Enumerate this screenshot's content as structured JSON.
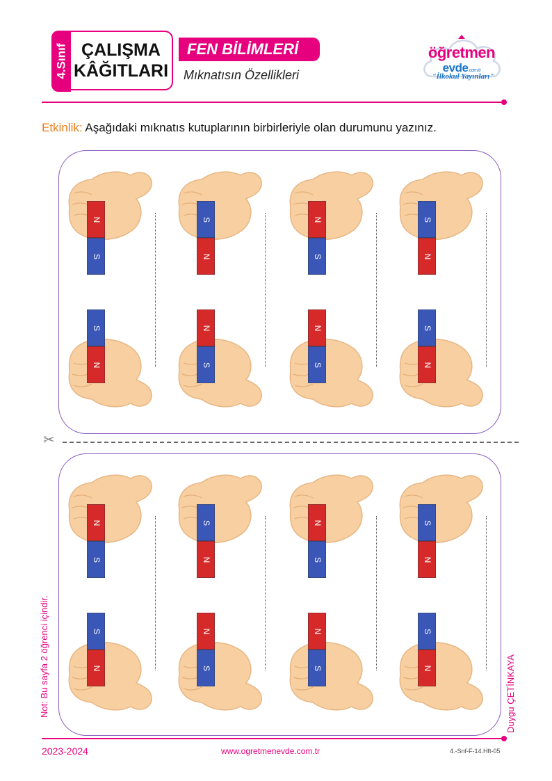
{
  "header": {
    "grade": "4.Sınıf",
    "title_line1": "ÇALIŞMA",
    "title_line2": "KÂĞITLARI",
    "subject": "FEN BİLİMLERİ",
    "topic": "Mıknatısın Özellikleri"
  },
  "logo": {
    "word1": "öğretmen",
    "word2": "evde",
    "domain_suffix": ".com.tr",
    "tagline": "\"İlkokul Yayınları\""
  },
  "activity": {
    "label": "Etkinlik:",
    "text": "Aşağıdaki mıknatıs kutuplarının birbirleriyle olan durumunu yazınız."
  },
  "colors": {
    "accent": "#e6007e",
    "activity_label": "#ee7d1a",
    "panel_border": "#8a5bbf",
    "magnet_red": "#d62a2a",
    "magnet_blue": "#3a57b8",
    "hand": "#f7cfa0"
  },
  "panels": [
    {
      "pairs": [
        {
          "top": [
            "N",
            "S"
          ],
          "bottom": [
            "S",
            "N"
          ]
        },
        {
          "top": [
            "S",
            "N"
          ],
          "bottom": [
            "N",
            "S"
          ]
        },
        {
          "top": [
            "N",
            "S"
          ],
          "bottom": [
            "N",
            "S"
          ]
        },
        {
          "top": [
            "S",
            "N"
          ],
          "bottom": [
            "S",
            "N"
          ]
        }
      ]
    },
    {
      "pairs": [
        {
          "top": [
            "N",
            "S"
          ],
          "bottom": [
            "S",
            "N"
          ]
        },
        {
          "top": [
            "S",
            "N"
          ],
          "bottom": [
            "N",
            "S"
          ]
        },
        {
          "top": [
            "N",
            "S"
          ],
          "bottom": [
            "N",
            "S"
          ]
        },
        {
          "top": [
            "S",
            "N"
          ],
          "bottom": [
            "S",
            "N"
          ]
        }
      ]
    }
  ],
  "cut_icon": "scissors-icon",
  "side_note_left": "Not: Bu sayfa 2 öğrenci içindir.",
  "side_note_right": "Duygu ÇETİNKAYA",
  "footer": {
    "year": "2023-2024",
    "url": "www.ogretmenevde.com.tr",
    "code": "4.-Snf-F-14.Hft-05"
  }
}
